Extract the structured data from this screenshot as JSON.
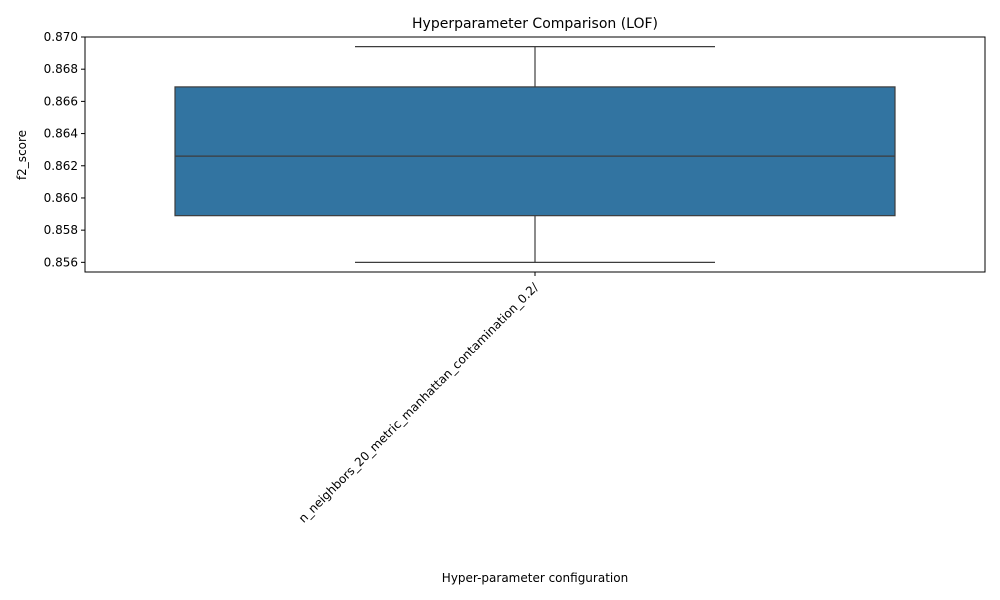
{
  "chart_data": {
    "type": "box",
    "title": "Hyperparameter Comparison (LOF)",
    "xlabel": "Hyper-parameter configuration",
    "ylabel": "f2_score",
    "categories": [
      "n_neighbors_20_metric_manhattan_contamination_0.2/"
    ],
    "boxes": [
      {
        "category": "n_neighbors_20_metric_manhattan_contamination_0.2/",
        "whisker_low": 0.856,
        "q1": 0.8589,
        "median": 0.8626,
        "q3": 0.8669,
        "whisker_high": 0.8694
      }
    ],
    "ylim": [
      0.8554,
      0.87
    ],
    "yticks": [
      0.856,
      0.858,
      0.86,
      0.862,
      0.864,
      0.866,
      0.868,
      0.87
    ],
    "ytick_labels": [
      "0.856",
      "0.858",
      "0.860",
      "0.862",
      "0.864",
      "0.866",
      "0.868",
      "0.870"
    ],
    "grid": false,
    "colors": {
      "box_fill": "#3274a1",
      "line": "#3d3d3d"
    }
  }
}
